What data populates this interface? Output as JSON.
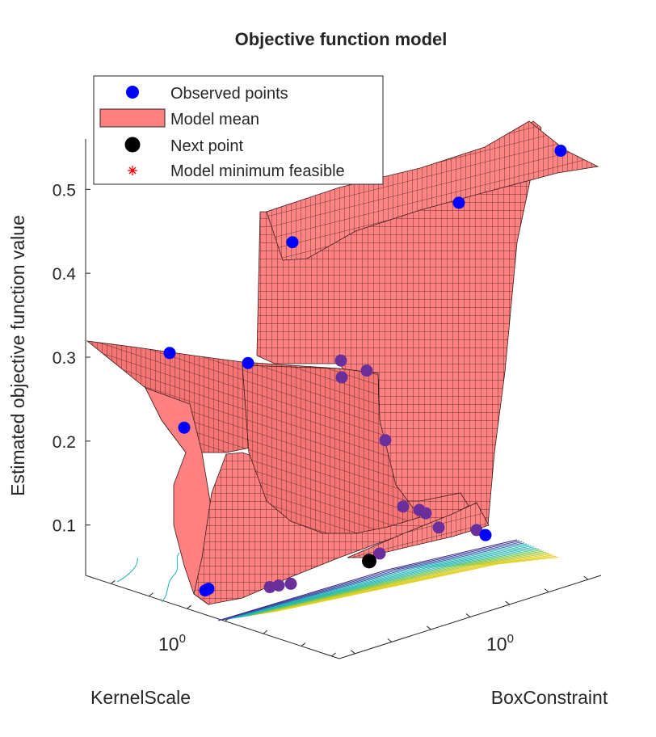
{
  "chart_data": {
    "type": "surface3d",
    "title": "Objective function model",
    "xlabel": "KernelScale",
    "ylabel": "BoxConstraint",
    "zlabel": "Estimated objective function value",
    "x_scale": "log",
    "y_scale": "log",
    "x_tick_labels": [
      {
        "base": "10",
        "exp": "0"
      }
    ],
    "y_tick_labels": [
      {
        "base": "10",
        "exp": "0"
      }
    ],
    "z_ticks": [
      0.1,
      0.2,
      0.3,
      0.4,
      0.5
    ],
    "zlim": [
      0.04,
      0.56
    ],
    "grid": false,
    "legend_position": "top-left",
    "legend": [
      {
        "label": "Observed points",
        "marker": "circle",
        "color": "#0000ff"
      },
      {
        "label": "Model mean",
        "marker": "patch",
        "color": "#ff8080"
      },
      {
        "label": "Next point",
        "marker": "circle",
        "color": "#000000"
      },
      {
        "label": "Model minimum feasible",
        "marker": "asterisk",
        "color": "#ff0000"
      }
    ],
    "colors": {
      "surface_fill": "#ff8080",
      "surface_edge": "#1a1a1a",
      "observed": "#0000ff",
      "observed_hidden": "#6a2f9a",
      "next_point": "#000000",
      "contour_low": "#3a2a8a",
      "contour_mid": "#1fb3b3",
      "contour_high": "#e0d020"
    },
    "observed_points": [
      {
        "z": 0.546
      },
      {
        "z": 0.484
      },
      {
        "z": 0.437
      },
      {
        "z": 0.305
      },
      {
        "z": 0.293
      },
      {
        "z": 0.216
      },
      {
        "z": 0.296
      },
      {
        "z": 0.284
      },
      {
        "z": 0.276
      },
      {
        "z": 0.201
      },
      {
        "z": 0.122
      },
      {
        "z": 0.118
      },
      {
        "z": 0.114
      },
      {
        "z": 0.097
      },
      {
        "z": 0.094
      },
      {
        "z": 0.088
      },
      {
        "z": 0.066
      },
      {
        "z": 0.03
      },
      {
        "z": 0.028
      },
      {
        "z": 0.026
      },
      {
        "z": 0.024
      },
      {
        "z": 0.022
      }
    ],
    "next_point": {
      "z": 0.057
    }
  }
}
